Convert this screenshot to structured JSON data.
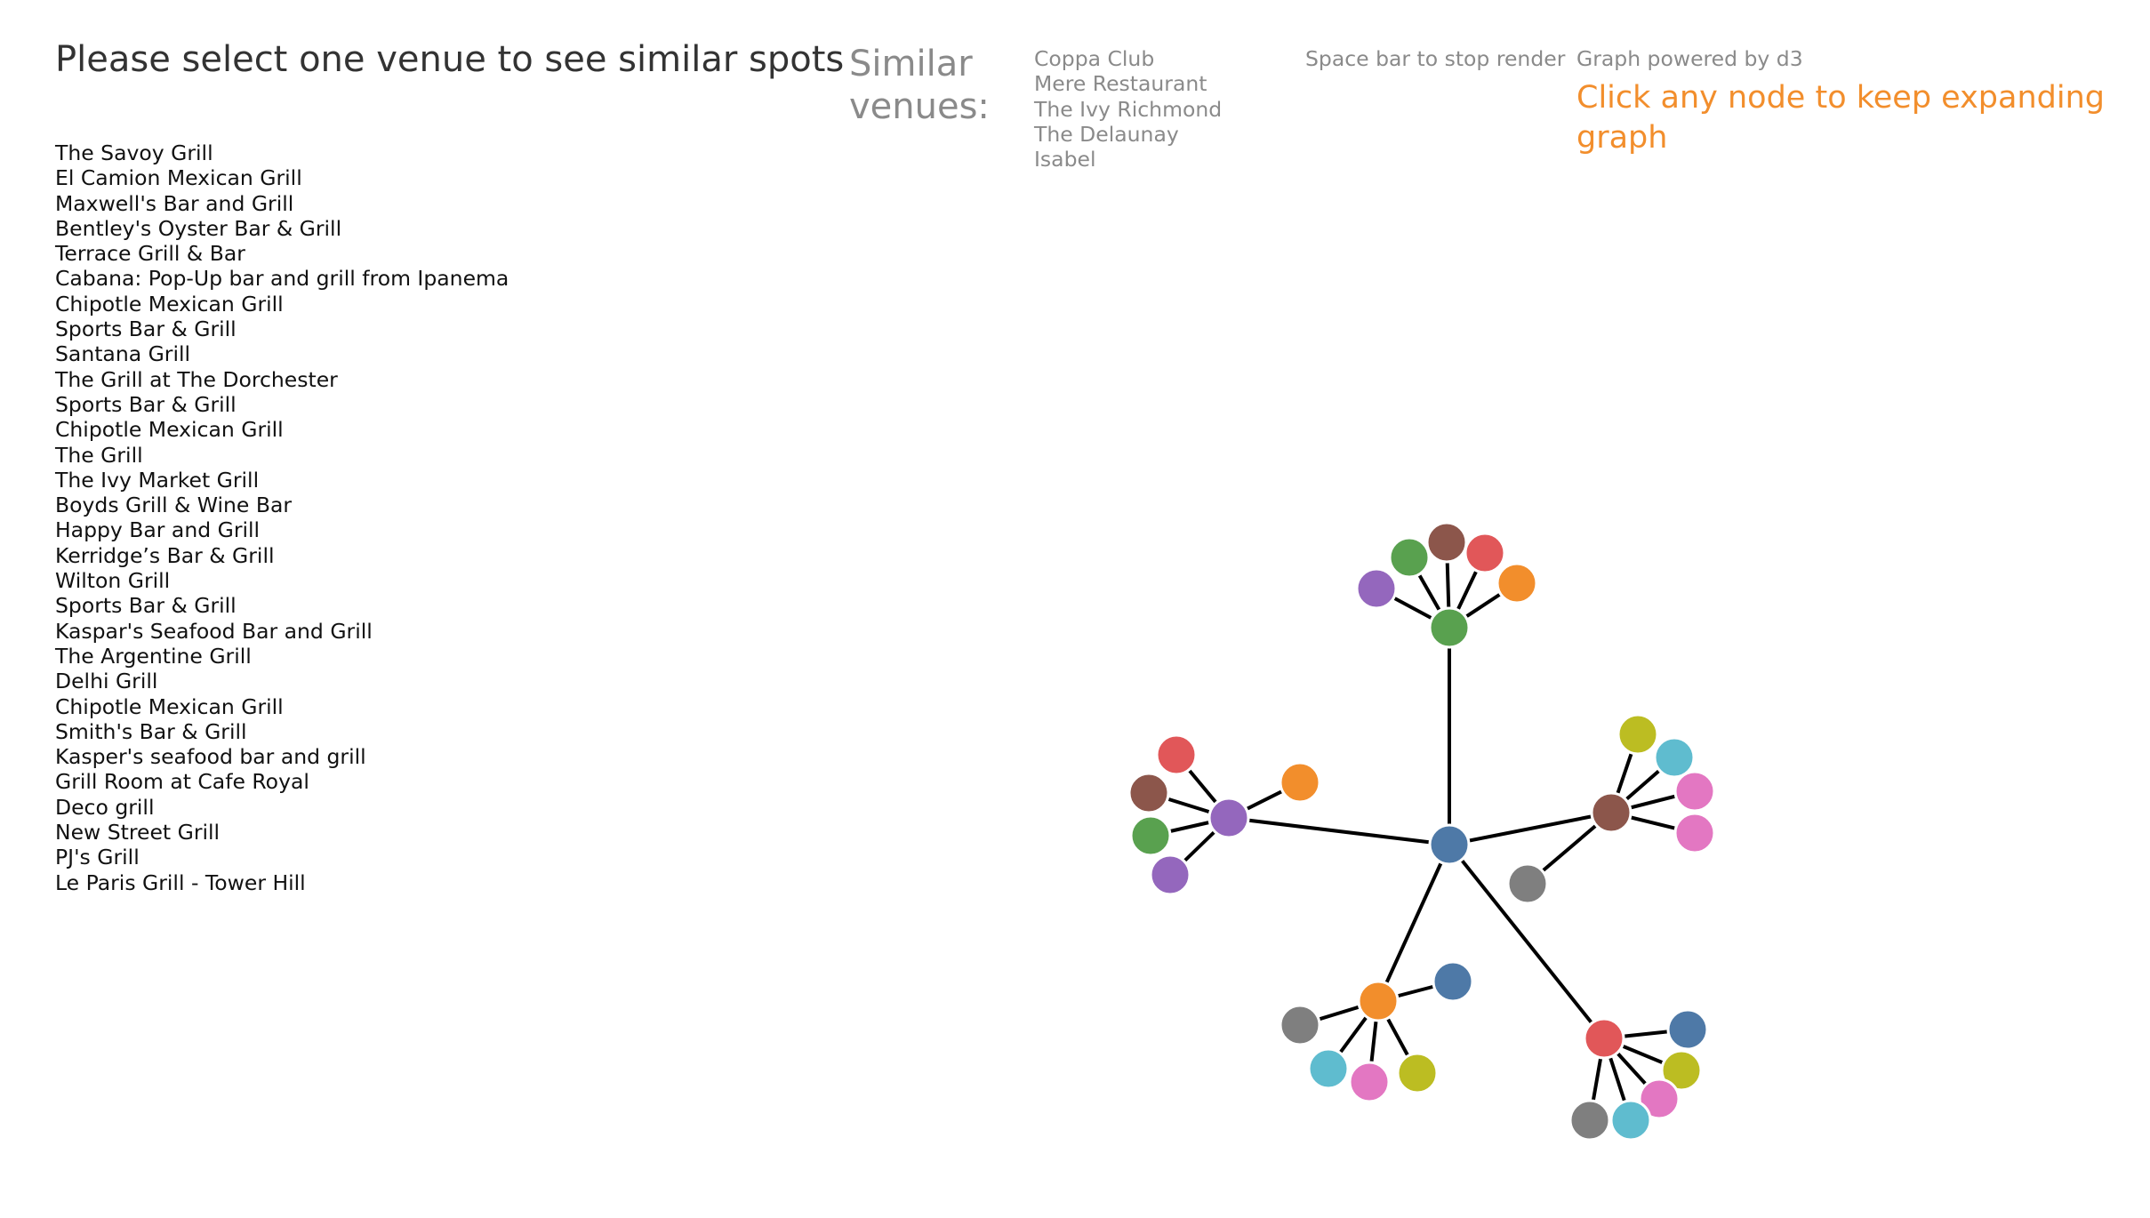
{
  "header": {
    "title": "Please select one venue to see similar spots"
  },
  "venues": [
    "The Savoy Grill",
    "El Camion Mexican Grill",
    "Maxwell's Bar and Grill",
    "Bentley's Oyster Bar & Grill",
    "Terrace Grill & Bar",
    "Cabana: Pop-Up bar and grill from Ipanema",
    "Chipotle Mexican Grill",
    "Sports Bar & Grill",
    "Santana Grill",
    "The Grill at The Dorchester",
    "Sports Bar & Grill",
    "Chipotle Mexican Grill",
    "The Grill",
    "The Ivy Market Grill",
    "Boyds Grill & Wine Bar",
    "Happy Bar and Grill",
    "Kerridge’s Bar & Grill",
    "Wilton Grill",
    "Sports Bar & Grill",
    "Kaspar's Seafood Bar and Grill",
    "The Argentine Grill",
    "Delhi Grill",
    "Chipotle Mexican Grill",
    "Smith's Bar & Grill",
    "Kasper's seafood bar and grill",
    "Grill Room at Cafe Royal",
    "Deco grill",
    "New Street Grill",
    "PJ's Grill",
    "Le Paris Grill - Tower Hill"
  ],
  "similar": {
    "heading": "Similar venues:",
    "items": [
      "Coppa Club",
      "Mere Restaurant",
      "The Ivy Richmond",
      "The Delaunay",
      "Isabel"
    ]
  },
  "hints": {
    "stop_render": "Space bar to stop render",
    "credit": "Graph powered by d3",
    "cta": "Click any node to keep expanding graph"
  },
  "colors": {
    "blue": "#4e79a7",
    "orange": "#f28e2c",
    "red": "#e15759",
    "teal": "#76b7b2",
    "green": "#59a14f",
    "yellow": "#bcbd22",
    "purple": "#9467bd",
    "pink": "#e377c2",
    "brown": "#8c564b",
    "gray": "#7f7f7f",
    "cyan": "#5fbccf",
    "accent_text": "#f28e2c",
    "muted_text": "#8a8a8a"
  },
  "graph": {
    "root": "blue",
    "hubs": [
      {
        "color": "green",
        "children": [
          "purple",
          "green",
          "brown",
          "red",
          "orange"
        ]
      },
      {
        "color": "brown",
        "children": [
          "yellow",
          "cyan",
          "pink",
          "pink"
        ]
      },
      {
        "color": "purple",
        "children": [
          "red",
          "brown",
          "green",
          "purple",
          "orange"
        ]
      },
      {
        "color": "orange",
        "children": [
          "blue",
          "gray",
          "cyan",
          "pink",
          "yellow"
        ]
      },
      {
        "color": "red",
        "children": [
          "blue",
          "yellow",
          "pink",
          "cyan",
          "gray"
        ]
      }
    ],
    "leaves": [
      "gray"
    ]
  }
}
